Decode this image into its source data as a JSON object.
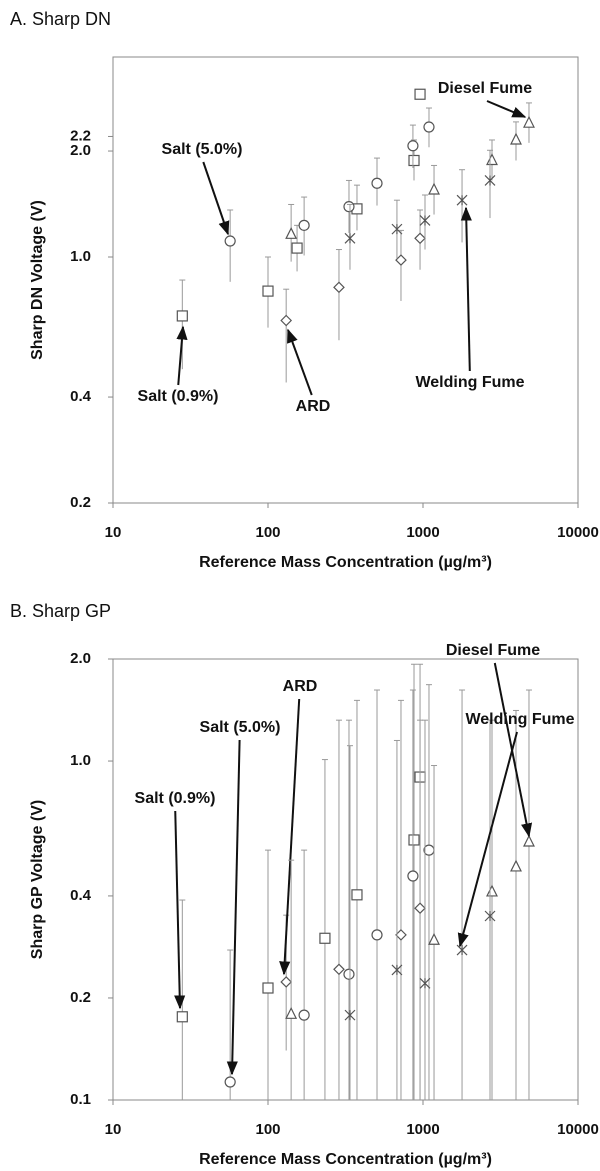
{
  "chart_data": [
    {
      "type": "scatter",
      "title": "A. Sharp DN",
      "x_label": "Reference Mass Concentration (µg/m³)",
      "y_label": "Sharp DN Voltage (V)",
      "log_x": true,
      "log_y": true,
      "xlim": [
        10,
        10000
      ],
      "xticks": [
        10,
        100,
        1000,
        10000
      ],
      "ylim": [
        0.2,
        3.7
      ],
      "yticks": [
        0.2,
        0.4,
        {
          "value": 1,
          "label": "1.0"
        },
        {
          "value": 2,
          "label": "2.0"
        },
        2.2
      ],
      "series": [
        {
          "name": "Salt (0.9%)",
          "marker": "square",
          "color": "#555555",
          "x": [
            28,
            100,
            154,
            375,
            875,
            957
          ],
          "values": [
            0.68,
            0.8,
            1.06,
            1.37,
            1.88,
            2.9
          ],
          "lower": [
            0.48,
            0.63,
            0.91,
            1.19,
            1.65,
            2.85
          ],
          "upper": [
            0.86,
            1.0,
            1.23,
            1.6,
            2.15,
            2.95
          ]
        },
        {
          "name": "Salt (5.0%)",
          "marker": "circle",
          "color": "#555555",
          "x": [
            57,
            171,
            333,
            505,
            861,
            1093
          ],
          "values": [
            1.11,
            1.23,
            1.39,
            1.62,
            2.07,
            2.34
          ],
          "lower": [
            0.85,
            1.01,
            1.17,
            1.4,
            1.79,
            2.05
          ],
          "upper": [
            1.36,
            1.48,
            1.65,
            1.91,
            2.37,
            2.65
          ]
        },
        {
          "name": "ARD",
          "marker": "diamond",
          "color": "#555555",
          "x": [
            131,
            287,
            721,
            957
          ],
          "values": [
            0.66,
            0.82,
            0.98,
            1.13
          ],
          "lower": [
            0.44,
            0.58,
            0.75,
            0.92
          ],
          "upper": [
            0.81,
            1.05,
            1.19,
            1.36
          ]
        },
        {
          "name": "Diesel Fume",
          "marker": "triangle",
          "color": "#555555",
          "x": [
            141,
            1178,
            2787,
            3981,
            4828
          ],
          "values": [
            1.16,
            1.55,
            1.88,
            2.15,
            2.4
          ],
          "lower": [
            0.97,
            1.32,
            1.65,
            1.88,
            2.11
          ],
          "upper": [
            1.41,
            1.82,
            2.15,
            2.42,
            2.74
          ]
        },
        {
          "name": "Welding Fume",
          "marker": "x",
          "color": "#555555",
          "x": [
            338,
            679,
            1030,
            1786,
            2706
          ],
          "values": [
            1.13,
            1.2,
            1.27,
            1.45,
            1.65
          ],
          "lower": [
            0.92,
            0.99,
            1.05,
            1.1,
            1.29
          ],
          "upper": [
            1.41,
            1.45,
            1.5,
            1.77,
            2.01
          ]
        }
      ]
    },
    {
      "type": "scatter",
      "title": "B. Sharp GP",
      "x_label": "Reference Mass Concentration (µg/m³)",
      "y_label": "Sharp GP Voltage (V)",
      "log_x": true,
      "log_y": true,
      "xlim": [
        10,
        10000
      ],
      "xticks": [
        10,
        100,
        1000,
        10000
      ],
      "ylim": [
        0.1,
        2.0
      ],
      "yticks": [
        0.1,
        0.2,
        0.4,
        {
          "value": 1,
          "label": "1.0"
        },
        {
          "value": 2,
          "label": "2.0"
        }
      ],
      "series": [
        {
          "name": "Salt (0.9%)",
          "marker": "square",
          "color": "#555555",
          "x": [
            28,
            100,
            233,
            375,
            875,
            957
          ],
          "values": [
            0.176,
            0.214,
            0.3,
            0.403,
            0.585,
            0.897
          ],
          "lower": [
            0.1,
            0.1,
            0.1,
            0.1,
            0.1,
            0.1
          ],
          "upper": [
            0.389,
            0.546,
            1.01,
            1.51,
            1.93,
            1.93
          ]
        },
        {
          "name": "Salt (5.0%)",
          "marker": "circle",
          "color": "#555555",
          "x": [
            57,
            171,
            333,
            505,
            861,
            1093
          ],
          "values": [
            0.113,
            0.178,
            0.235,
            0.307,
            0.458,
            0.546
          ],
          "lower": [
            0.1,
            0.1,
            0.1,
            0.1,
            0.1,
            0.1
          ],
          "upper": [
            0.277,
            0.546,
            1.32,
            1.62,
            1.62,
            1.68
          ]
        },
        {
          "name": "ARD",
          "marker": "diamond",
          "color": "#555555",
          "x": [
            131,
            287,
            721,
            957
          ],
          "values": [
            0.223,
            0.243,
            0.307,
            0.368
          ],
          "lower": [
            0.14,
            0.1,
            0.1,
            0.1
          ],
          "upper": [
            0.351,
            1.32,
            1.51,
            1.32
          ]
        },
        {
          "name": "Diesel Fume",
          "marker": "triangle",
          "color": "#555555",
          "x": [
            141,
            1178,
            2787,
            3981,
            4828
          ],
          "values": [
            0.179,
            0.296,
            0.411,
            0.487,
            0.577
          ],
          "lower": [
            0.1,
            0.1,
            0.1,
            0.1,
            0.1
          ],
          "upper": [
            0.51,
            0.97,
            1.32,
            1.41,
            1.62
          ]
        },
        {
          "name": "Welding Fume",
          "marker": "x",
          "color": "#555555",
          "x": [
            338,
            679,
            1030,
            1786,
            2706
          ],
          "values": [
            0.178,
            0.242,
            0.221,
            0.277,
            0.349
          ],
          "lower": [
            0.1,
            0.1,
            0.1,
            0.1,
            0.1
          ],
          "upper": [
            1.11,
            1.15,
            1.32,
            1.62,
            1.32
          ]
        }
      ]
    }
  ]
}
